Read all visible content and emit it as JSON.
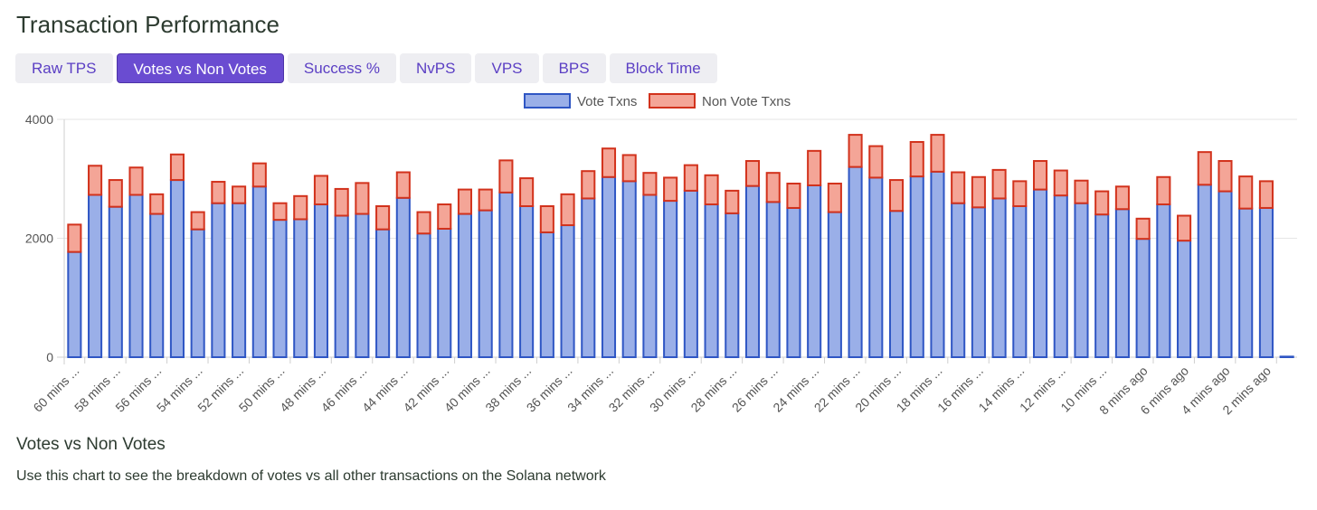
{
  "page": {
    "title": "Transaction Performance",
    "section_title": "Votes vs Non Votes",
    "description": "Use this chart to see the breakdown of votes vs all other transactions on the Solana network"
  },
  "tabs": [
    {
      "label": "Raw TPS",
      "active": false
    },
    {
      "label": "Votes vs Non Votes",
      "active": true
    },
    {
      "label": "Success %",
      "active": false
    },
    {
      "label": "NvPS",
      "active": false
    },
    {
      "label": "VPS",
      "active": false
    },
    {
      "label": "BPS",
      "active": false
    },
    {
      "label": "Block Time",
      "active": false
    }
  ],
  "colors": {
    "vote_fill": "#9aafe8",
    "vote_stroke": "#2f56c4",
    "nonvote_fill": "#f4a597",
    "nonvote_stroke": "#d2321c",
    "active_tab": "#6a4cd1",
    "tab_text": "#5b3fc4"
  },
  "chart_data": {
    "type": "bar",
    "stacked": true,
    "legend_position": "top-center",
    "grid": true,
    "ylim": [
      0,
      4000
    ],
    "y_ticks": [
      "0",
      "2000",
      "4000"
    ],
    "x_tick_labels": [
      "60 mins ...",
      "58 mins ...",
      "56 mins ...",
      "54 mins ...",
      "52 mins ...",
      "50 mins ...",
      "48 mins ...",
      "46 mins ...",
      "44 mins ...",
      "42 mins ...",
      "40 mins ...",
      "38 mins ...",
      "36 mins ...",
      "34 mins ...",
      "32 mins ...",
      "30 mins ...",
      "28 mins ...",
      "26 mins ...",
      "24 mins ...",
      "22 mins ...",
      "20 mins ...",
      "18 mins ...",
      "16 mins ...",
      "14 mins ...",
      "12 mins ...",
      "10 mins ...",
      "8 mins ago",
      "6 mins ago",
      "4 mins ago",
      "2 mins ago"
    ],
    "series": [
      {
        "name": "Vote Txns",
        "values": [
          1770,
          2730,
          2530,
          2730,
          2410,
          2980,
          2150,
          2590,
          2590,
          2870,
          2310,
          2320,
          2570,
          2380,
          2410,
          2150,
          2680,
          2080,
          2160,
          2410,
          2470,
          2770,
          2540,
          2100,
          2220,
          2670,
          3030,
          2960,
          2730,
          2630,
          2800,
          2570,
          2420,
          2880,
          2610,
          2510,
          2890,
          2440,
          3200,
          3020,
          2460,
          3040,
          3120,
          2590,
          2520,
          2670,
          2540,
          2820,
          2720,
          2590,
          2400,
          2490,
          1990,
          2570,
          1960,
          2900,
          2790,
          2500,
          2510,
          10
        ]
      },
      {
        "name": "Non Vote Txns",
        "values": [
          460,
          490,
          450,
          460,
          330,
          430,
          290,
          360,
          280,
          390,
          280,
          390,
          480,
          450,
          520,
          390,
          430,
          360,
          410,
          410,
          350,
          540,
          470,
          440,
          520,
          460,
          480,
          440,
          370,
          390,
          430,
          490,
          380,
          420,
          490,
          410,
          580,
          480,
          540,
          530,
          520,
          580,
          620,
          520,
          510,
          480,
          420,
          480,
          420,
          380,
          390,
          380,
          340,
          460,
          420,
          550,
          510,
          540,
          450,
          0
        ]
      }
    ]
  }
}
